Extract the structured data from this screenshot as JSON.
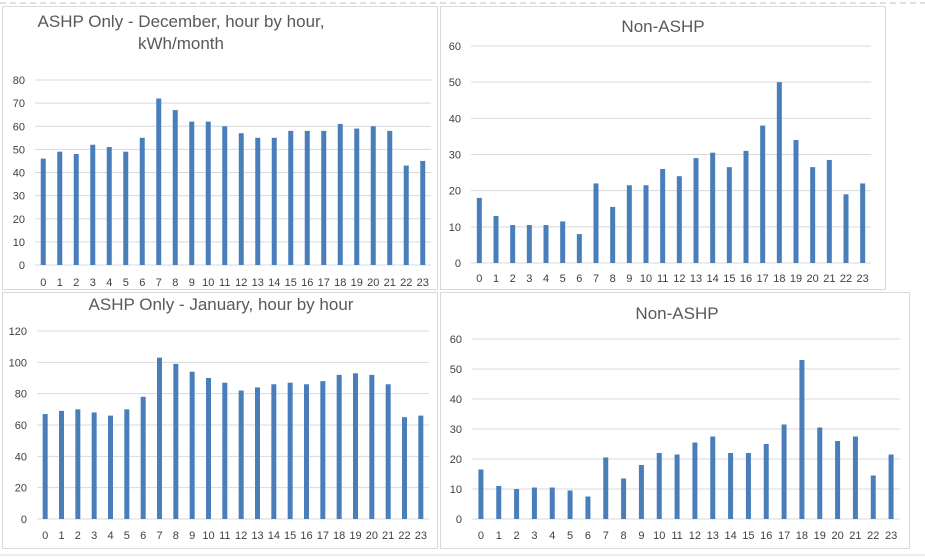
{
  "colors": {
    "bar": "#4a7ebb",
    "grid": "#d9d9d9",
    "text": "#595959"
  },
  "chart_data": [
    {
      "type": "bar",
      "title_lines": [
        "ASHP Only - December, hour by hour,",
        "kWh/month"
      ],
      "categories": [
        "0",
        "1",
        "2",
        "3",
        "4",
        "5",
        "6",
        "7",
        "8",
        "9",
        "10",
        "11",
        "12",
        "13",
        "14",
        "15",
        "16",
        "17",
        "18",
        "19",
        "20",
        "21",
        "22",
        "23"
      ],
      "values": [
        46,
        49,
        48,
        52,
        51,
        49,
        55,
        72,
        67,
        62,
        62,
        60,
        57,
        55,
        55,
        58,
        58,
        58,
        61,
        59,
        60,
        58,
        43,
        45
      ],
      "ylim": [
        0,
        80
      ],
      "yticks": [
        "0",
        "10",
        "20",
        "30",
        "40",
        "50",
        "60",
        "70",
        "80"
      ],
      "grid": true
    },
    {
      "type": "bar",
      "title_lines": [
        "Non-ASHP"
      ],
      "categories": [
        "0",
        "1",
        "2",
        "3",
        "4",
        "5",
        "6",
        "7",
        "8",
        "9",
        "10",
        "11",
        "12",
        "13",
        "14",
        "15",
        "16",
        "17",
        "18",
        "19",
        "20",
        "21",
        "22",
        "23"
      ],
      "values": [
        18,
        13,
        10.5,
        10.5,
        10.5,
        11.5,
        8,
        22,
        15.5,
        21.5,
        21.5,
        26,
        24,
        29,
        30.5,
        26.5,
        31,
        38,
        50,
        34,
        26.5,
        28.5,
        19,
        22
      ],
      "ylim": [
        0,
        60
      ],
      "yticks": [
        "0",
        "10",
        "20",
        "30",
        "40",
        "50",
        "60"
      ],
      "grid": true
    },
    {
      "type": "bar",
      "title_lines": [
        "ASHP Only - January, hour by hour"
      ],
      "categories": [
        "0",
        "1",
        "2",
        "3",
        "4",
        "5",
        "6",
        "7",
        "8",
        "9",
        "10",
        "11",
        "12",
        "13",
        "14",
        "15",
        "16",
        "17",
        "18",
        "19",
        "20",
        "21",
        "22",
        "23"
      ],
      "values": [
        67,
        69,
        70,
        68,
        66,
        70,
        78,
        103,
        99,
        94,
        90,
        87,
        82,
        84,
        86,
        87,
        86,
        88,
        92,
        93,
        92,
        86,
        65,
        66
      ],
      "ylim": [
        0,
        120
      ],
      "yticks": [
        "0",
        "20",
        "40",
        "60",
        "80",
        "100",
        "120"
      ],
      "grid": true
    },
    {
      "type": "bar",
      "title_lines": [
        "Non-ASHP"
      ],
      "categories": [
        "0",
        "1",
        "2",
        "3",
        "4",
        "5",
        "6",
        "7",
        "8",
        "9",
        "10",
        "11",
        "12",
        "13",
        "14",
        "15",
        "16",
        "17",
        "18",
        "19",
        "20",
        "21",
        "22",
        "23"
      ],
      "values": [
        16.5,
        11,
        10,
        10.5,
        10.5,
        9.5,
        7.5,
        20.5,
        13.5,
        18,
        22,
        21.5,
        25.5,
        27.5,
        22,
        22,
        25,
        31.5,
        53,
        30.5,
        26,
        27.5,
        14.5,
        21.5
      ],
      "ylim": [
        0,
        60
      ],
      "yticks": [
        "0",
        "10",
        "20",
        "30",
        "40",
        "50",
        "60"
      ],
      "grid": true
    }
  ]
}
